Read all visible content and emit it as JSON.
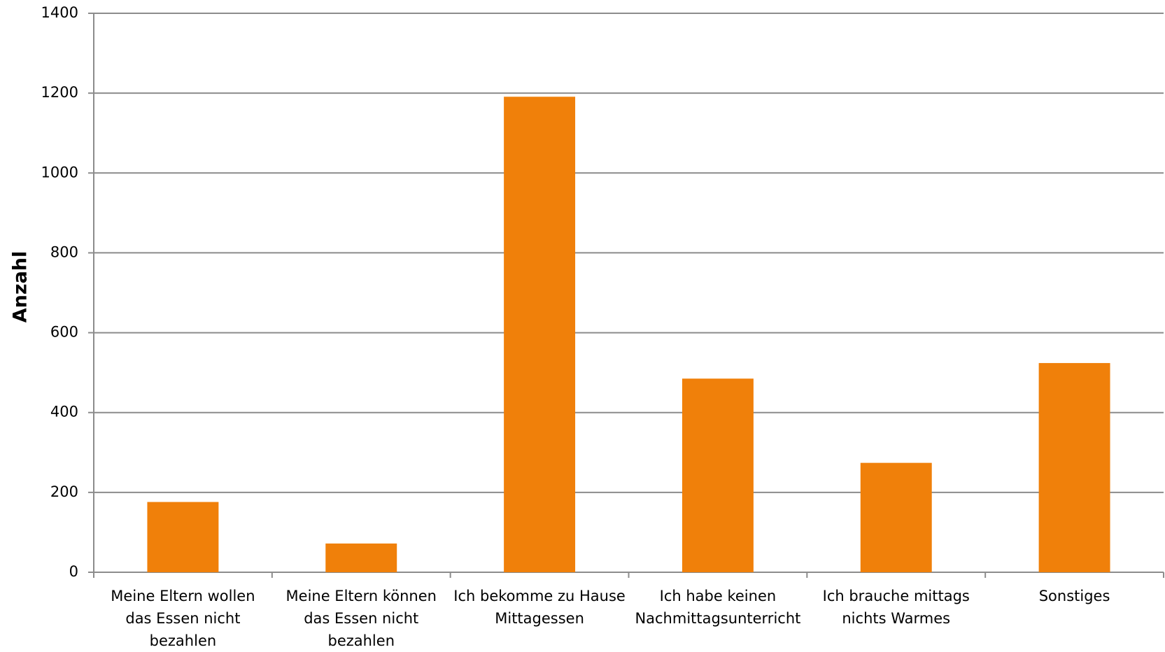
{
  "chart_data": {
    "type": "bar",
    "y_label": "Anzahl",
    "categories": [
      "Meine Eltern wollen das Essen nicht bezahlen",
      "Meine Eltern können das Essen nicht bezahlen",
      "Ich bekomme zu Hause Mittagessen",
      "Ich habe keinen Nachmittagsunterricht",
      "Ich brauche mittags nichts Warmes",
      "Sonstiges"
    ],
    "values": [
      176,
      72,
      1191,
      485,
      274,
      524
    ],
    "color": "#f0800a",
    "ylim": [
      0,
      1400
    ],
    "yticks": [
      0,
      200,
      400,
      600,
      800,
      1000,
      1200,
      1400
    ],
    "grid": true
  }
}
